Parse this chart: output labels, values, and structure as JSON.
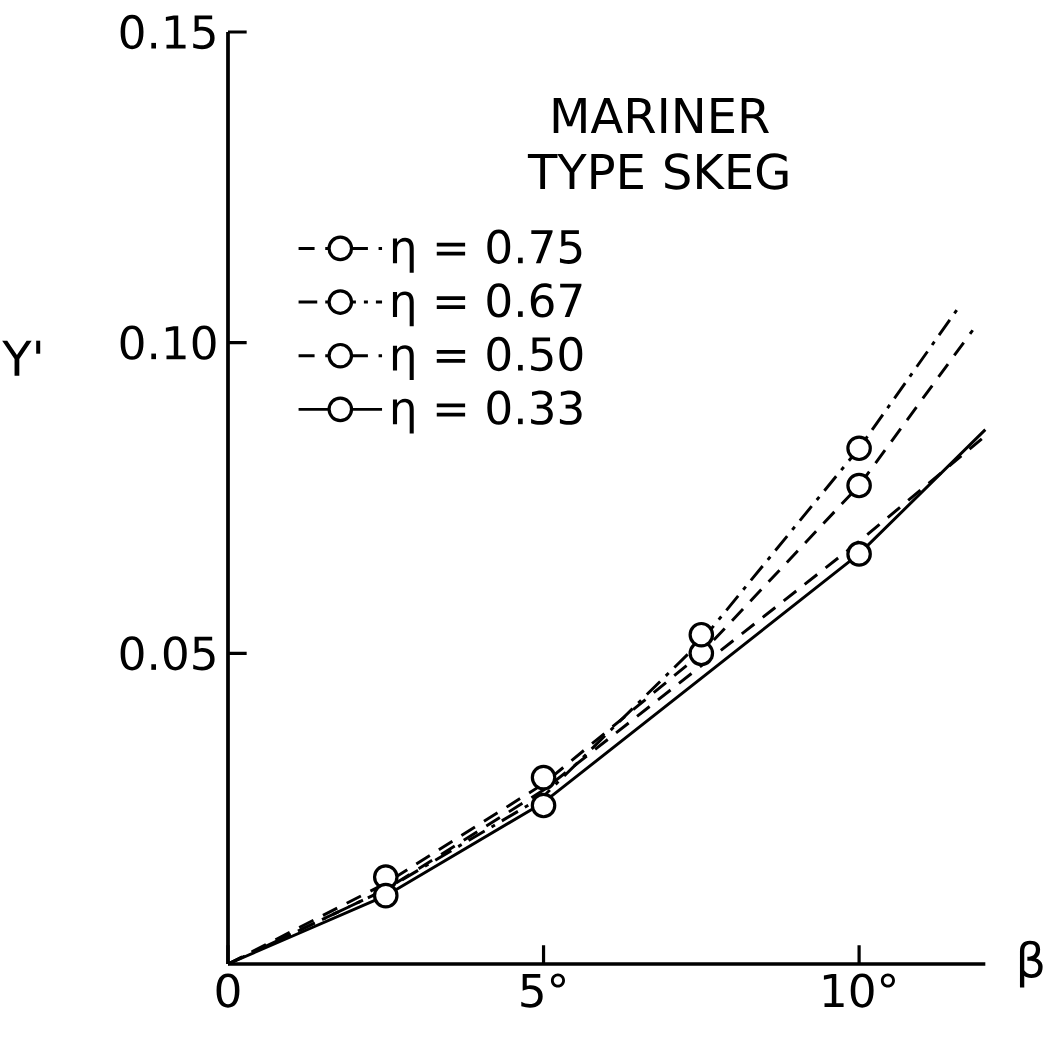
{
  "chart_data": {
    "type": "line",
    "xlabel": "β",
    "ylabel": "Y'",
    "legend_title": "MARINER TYPE SKEG",
    "legend": "top left",
    "xlim": [
      0,
      12
    ],
    "xticks": [
      0,
      {
        "value": 5,
        "label": "5°"
      },
      {
        "value": 10,
        "label": "10°"
      }
    ],
    "ylim": [
      0,
      0.15
    ],
    "yticks": [
      0.05,
      {
        "value": 0.1,
        "label": "0.10"
      },
      0.15
    ],
    "series": [
      {
        "name": "η = 0.75",
        "color": "#000000",
        "line_style": "dashed",
        "marker": "none",
        "x": [
          0,
          2.5,
          5,
          7.5,
          10,
          11.8
        ],
        "values": [
          0,
          0.013,
          0.029,
          0.05,
          0.077,
          0.102
        ]
      },
      {
        "name": "η = 0.67",
        "color": "#000000",
        "line_style": "dashdot",
        "marker": "none",
        "x": [
          0,
          2.5,
          5,
          7.5,
          10,
          11.6
        ],
        "values": [
          0,
          0.012,
          0.027,
          0.052,
          0.083,
          0.106
        ]
      },
      {
        "name": "η = 0.50",
        "color": "#000000",
        "line_style": "dashed",
        "marker": "none",
        "x": [
          0,
          2.5,
          5,
          7.5,
          10,
          12
        ],
        "values": [
          0,
          0.012,
          0.028,
          0.048,
          0.068,
          0.085
        ]
      },
      {
        "name": "η = 0.33",
        "color": "#000000",
        "line_style": "solid",
        "marker": "none",
        "x": [
          0,
          2.5,
          5,
          7.5,
          10,
          12
        ],
        "values": [
          0,
          0.011,
          0.026,
          0.046,
          0.066,
          0.086
        ]
      },
      {
        "type": "scatter",
        "color": "#000000",
        "marker": "circle",
        "x": [
          2.5,
          5,
          7.5,
          10
        ],
        "values": [
          0.014,
          0.03,
          0.05,
          0.077
        ]
      },
      {
        "type": "scatter",
        "color": "#000000",
        "marker": "circle",
        "x": [
          5,
          7.5,
          10
        ],
        "values": [
          0.0255,
          0.053,
          0.083
        ]
      },
      {
        "type": "scatter",
        "color": "#000000",
        "marker": "circle",
        "x": [
          2.5,
          10
        ],
        "values": [
          0.011,
          0.066
        ]
      }
    ]
  }
}
